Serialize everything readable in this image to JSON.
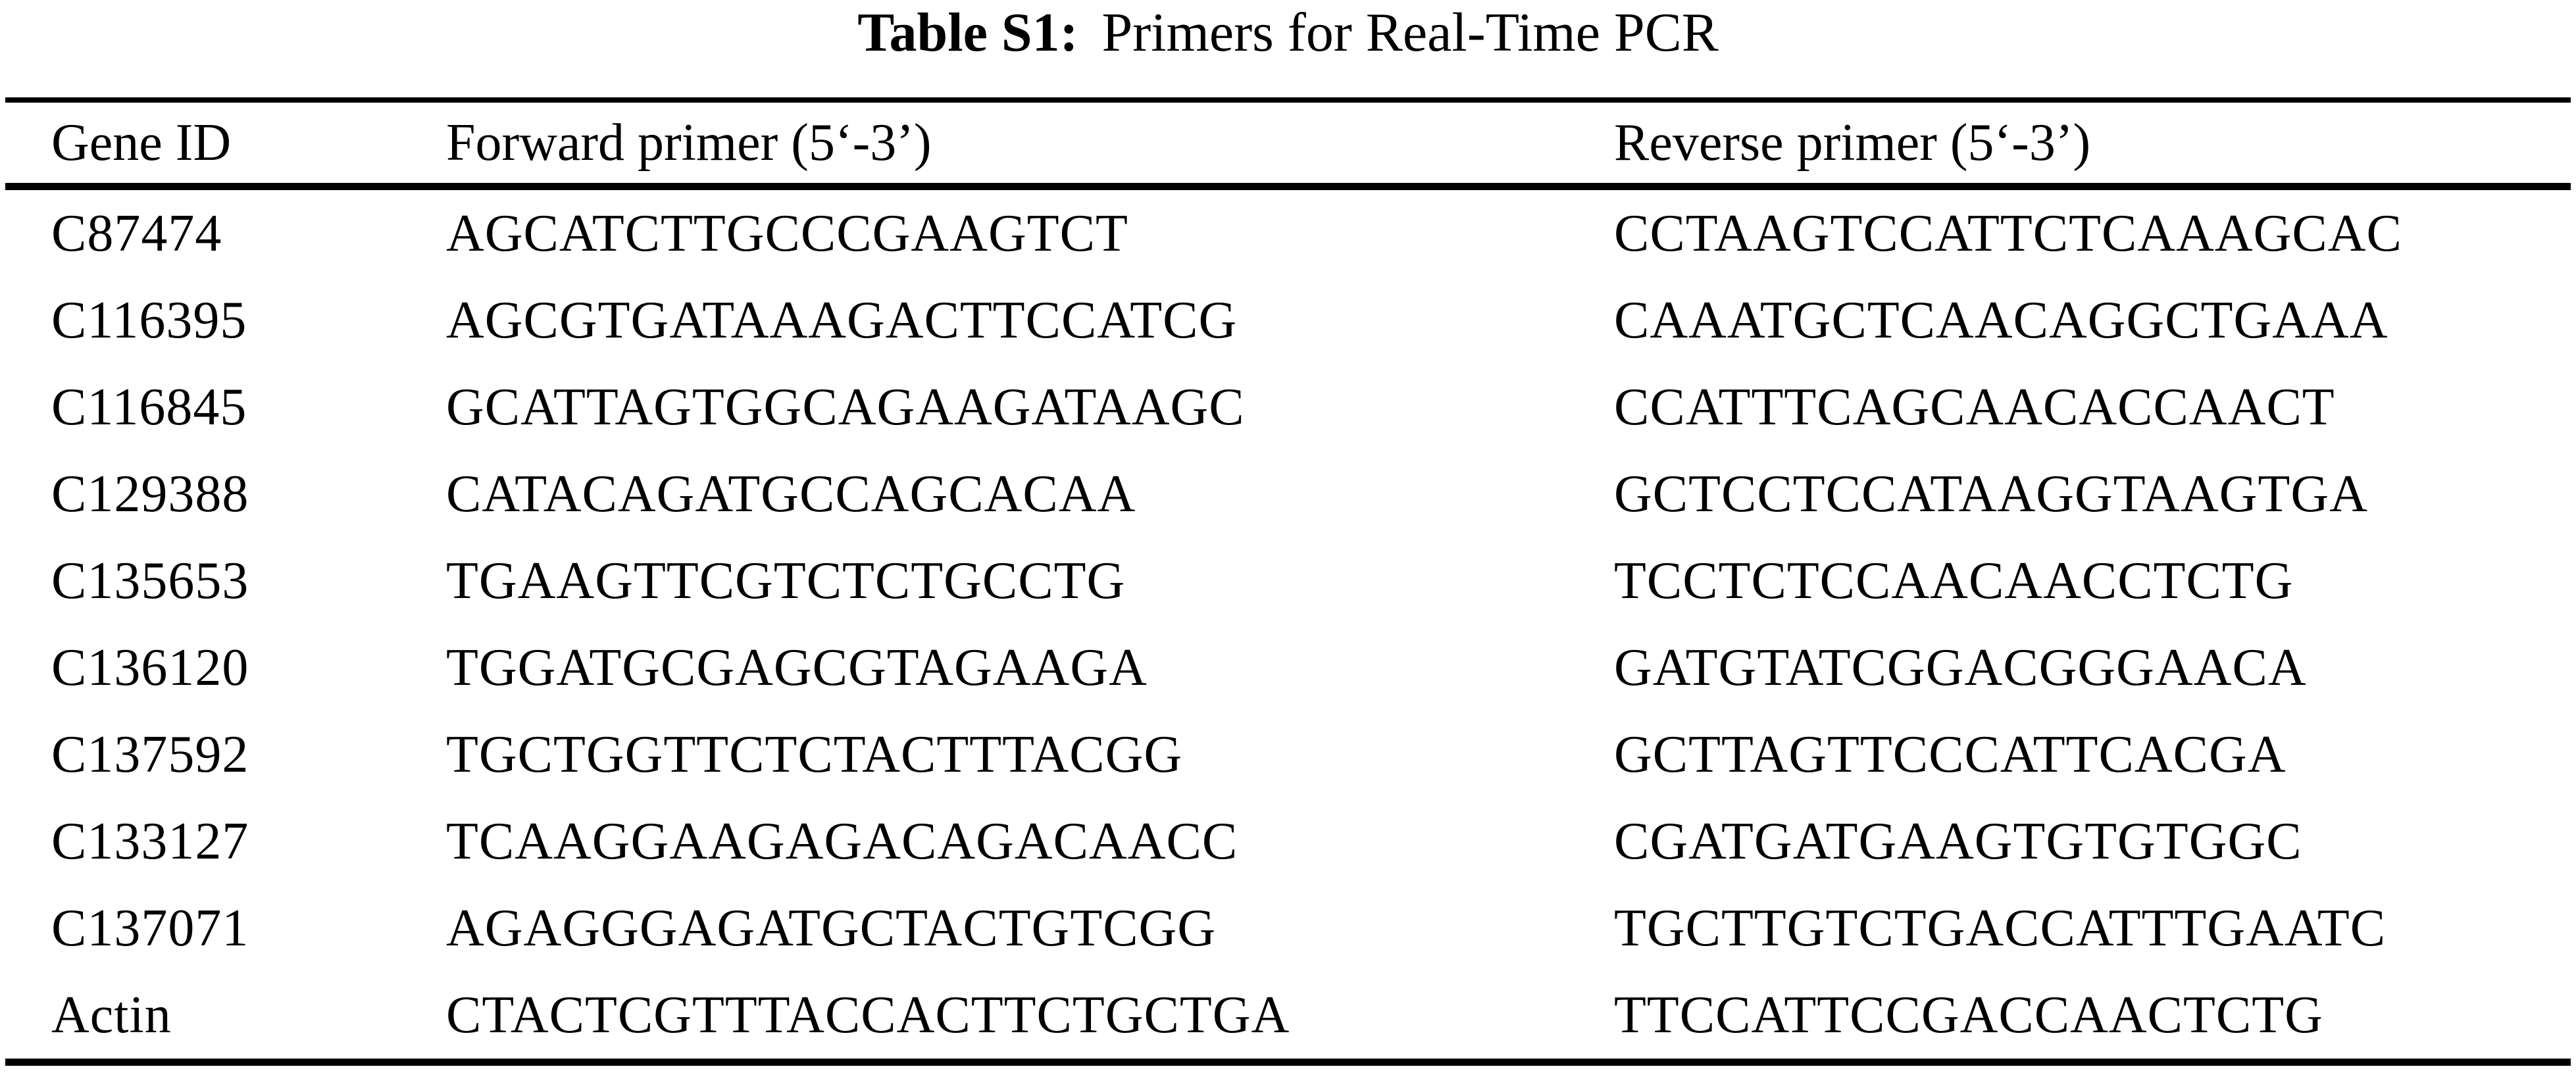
{
  "caption": {
    "label": "Table S1:",
    "title": "Primers for Real-Time PCR"
  },
  "table": {
    "columns": [
      "Gene ID",
      "Forward primer (5‘-3’)",
      "Reverse primer (5‘-3’)"
    ],
    "rows": [
      {
        "gene_id": "C87474",
        "forward": "AGCATCTTGCCCGAAGTCT",
        "reverse": "CCTAAGTCCATTCTCAAAGCAC"
      },
      {
        "gene_id": "C116395",
        "forward": "AGCGTGATAAAGACTTCCATCG",
        "reverse": "CAAATGCTCAACAGGCTGAAA"
      },
      {
        "gene_id": "C116845",
        "forward": "GCATTAGTGGCAGAAGATAAGC",
        "reverse": "CCATTTCAGCAACACCAACT"
      },
      {
        "gene_id": "C129388",
        "forward": "CATACAGATGCCAGCACAA",
        "reverse": "GCTCCTCCATAAGGTAAGTGA"
      },
      {
        "gene_id": "C135653",
        "forward": "TGAAGTTCGTCTCTGCCTG",
        "reverse": "TCCTCTCCAACAACCTCTG"
      },
      {
        "gene_id": "C136120",
        "forward": "TGGATGCGAGCGTAGAAGA",
        "reverse": "GATGTATCGGACGGGAACA"
      },
      {
        "gene_id": "C137592",
        "forward": "TGCTGGTTCTCTACTTTACGG",
        "reverse": "GCTTAGTTCCCATTCACGA"
      },
      {
        "gene_id": "C133127",
        "forward": "TCAAGGAAGAGACAGACAACC",
        "reverse": "CGATGATGAAGTGTGTGGC"
      },
      {
        "gene_id": "C137071",
        "forward": "AGAGGGAGATGCTACTGTCGG",
        "reverse": "TGCTTGTCTGACCATTTGAATC"
      },
      {
        "gene_id": "Actin",
        "forward": "CTACTCGTTTACCACTTCTGCTGA",
        "reverse": "TTCCATTCCGACCAACTCTG"
      }
    ]
  },
  "colors": {
    "text": "#000000",
    "background": "#ffffff",
    "rule": "#000000"
  }
}
